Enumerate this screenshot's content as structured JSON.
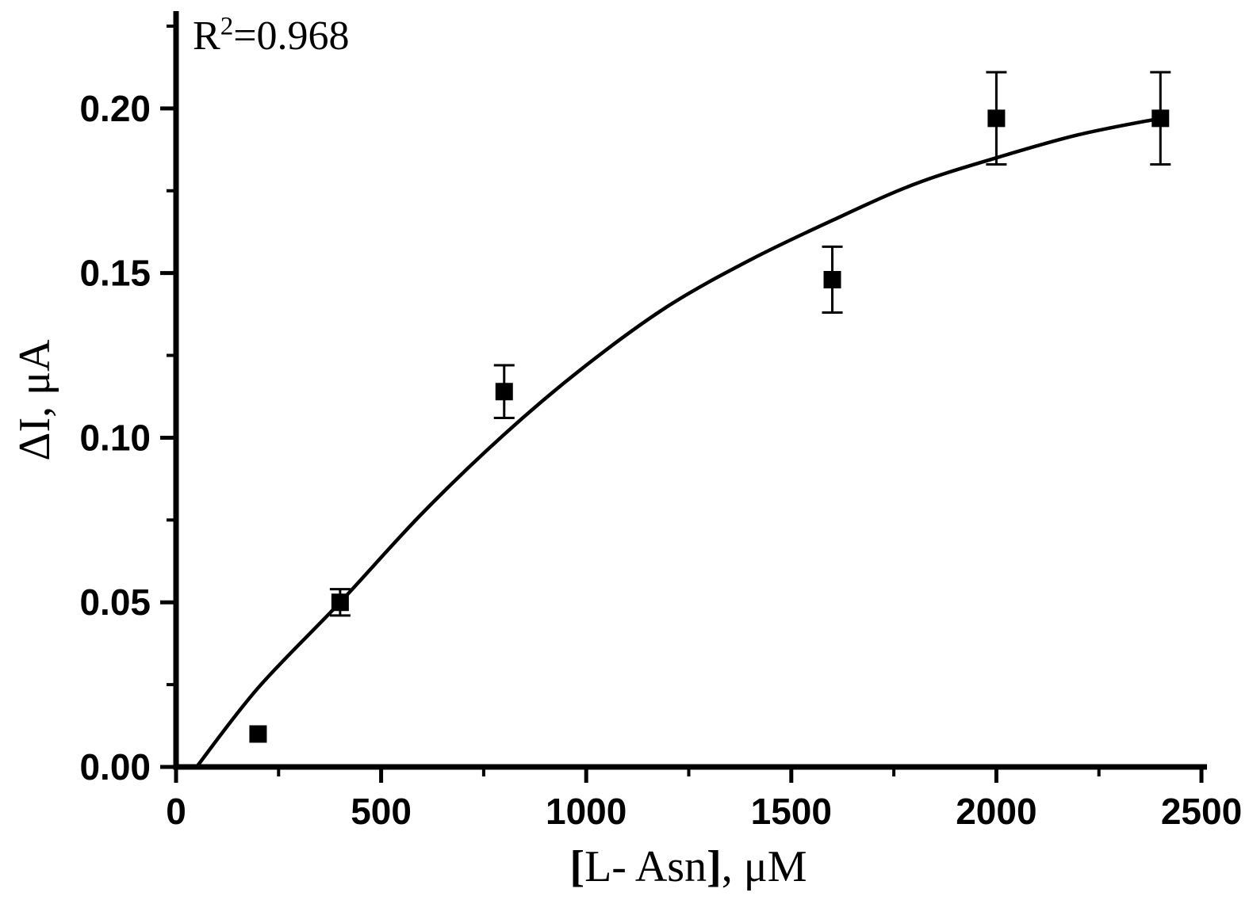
{
  "chart_data": {
    "type": "scatter",
    "title": "",
    "xlabel": "[L- Asn], μM",
    "xlabel_parts": {
      "open": "[",
      "core": "L- Asn",
      "close": "]",
      "rest": ", μM"
    },
    "ylabel": "ΔI, μA",
    "annotation": {
      "base": "R",
      "sup": "2",
      "rest": "=0.968"
    },
    "xlim": [
      0,
      2500
    ],
    "ylim": [
      0,
      0.225
    ],
    "x_major_ticks": [
      0,
      500,
      1000,
      1500,
      2000,
      2500
    ],
    "x_tick_labels": [
      "0",
      "500",
      "1000",
      "1500",
      "2000",
      "2500"
    ],
    "x_minor_ticks": [
      250,
      750,
      1250,
      1750,
      2250
    ],
    "y_major_ticks": [
      0.0,
      0.05,
      0.1,
      0.15,
      0.2
    ],
    "y_tick_labels": [
      "0.00",
      "0.05",
      "0.10",
      "0.15",
      "0.20"
    ],
    "y_minor_ticks": [
      0.025,
      0.075,
      0.125,
      0.175,
      0.225
    ],
    "grid": false,
    "legend": "none",
    "background": "#ffffff",
    "axis_color": "#000000",
    "series": [
      {
        "name": "measured-points",
        "marker": "square",
        "color": "#000000",
        "x": [
          200,
          400,
          800,
          1600,
          2000,
          2400
        ],
        "y": [
          0.01,
          0.05,
          0.114,
          0.148,
          0.197,
          0.197
        ],
        "y_error": [
          0.0,
          0.004,
          0.008,
          0.01,
          0.014,
          0.014
        ]
      }
    ],
    "fit_curve": {
      "name": "fit-line",
      "color": "#000000",
      "x": [
        50,
        200,
        400,
        600,
        800,
        1000,
        1200,
        1400,
        1600,
        1800,
        2000,
        2200,
        2400
      ],
      "y": [
        0.0,
        0.024,
        0.05,
        0.077,
        0.101,
        0.122,
        0.14,
        0.154,
        0.166,
        0.177,
        0.185,
        0.192,
        0.197
      ]
    }
  }
}
